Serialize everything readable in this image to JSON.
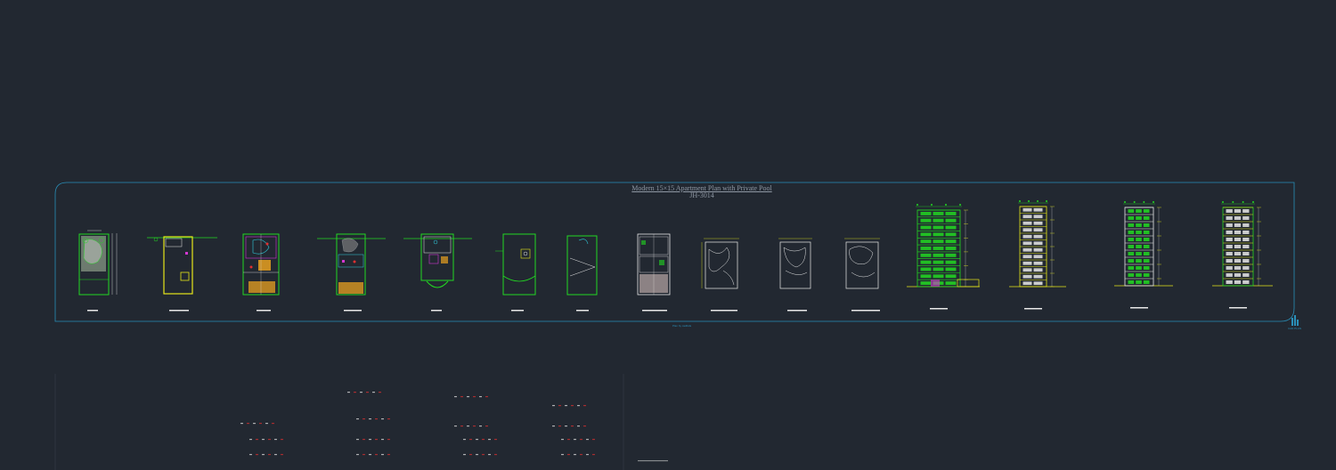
{
  "drawing": {
    "title": "Modern 15×15 Apartment Plan with Private Pool",
    "code": "JH-3014",
    "footer": "Plan by cadbids",
    "logo_text": "CAD PLAN"
  },
  "colors": {
    "background": "#222831",
    "frame": "#2a8fb8",
    "green": "#22d822",
    "yellow": "#e6e61a",
    "magenta": "#d238d2",
    "white": "#e8e8e8",
    "red": "#e03030",
    "orange": "#e8a020",
    "cyan": "#30d0e0"
  },
  "sheets": [
    {
      "kind": "site-plan"
    },
    {
      "kind": "parking-plan"
    },
    {
      "kind": "ground-floor"
    },
    {
      "kind": "first-floor"
    },
    {
      "kind": "typical-floor"
    },
    {
      "kind": "roof-plan"
    },
    {
      "kind": "terrace-plan"
    },
    {
      "kind": "furniture-plan"
    },
    {
      "kind": "ceiling-plan-a"
    },
    {
      "kind": "ceiling-plan-b"
    },
    {
      "kind": "ceiling-plan-c"
    },
    {
      "kind": "elevation-front"
    },
    {
      "kind": "section-a"
    },
    {
      "kind": "elevation-side"
    },
    {
      "kind": "elevation-rear"
    }
  ]
}
